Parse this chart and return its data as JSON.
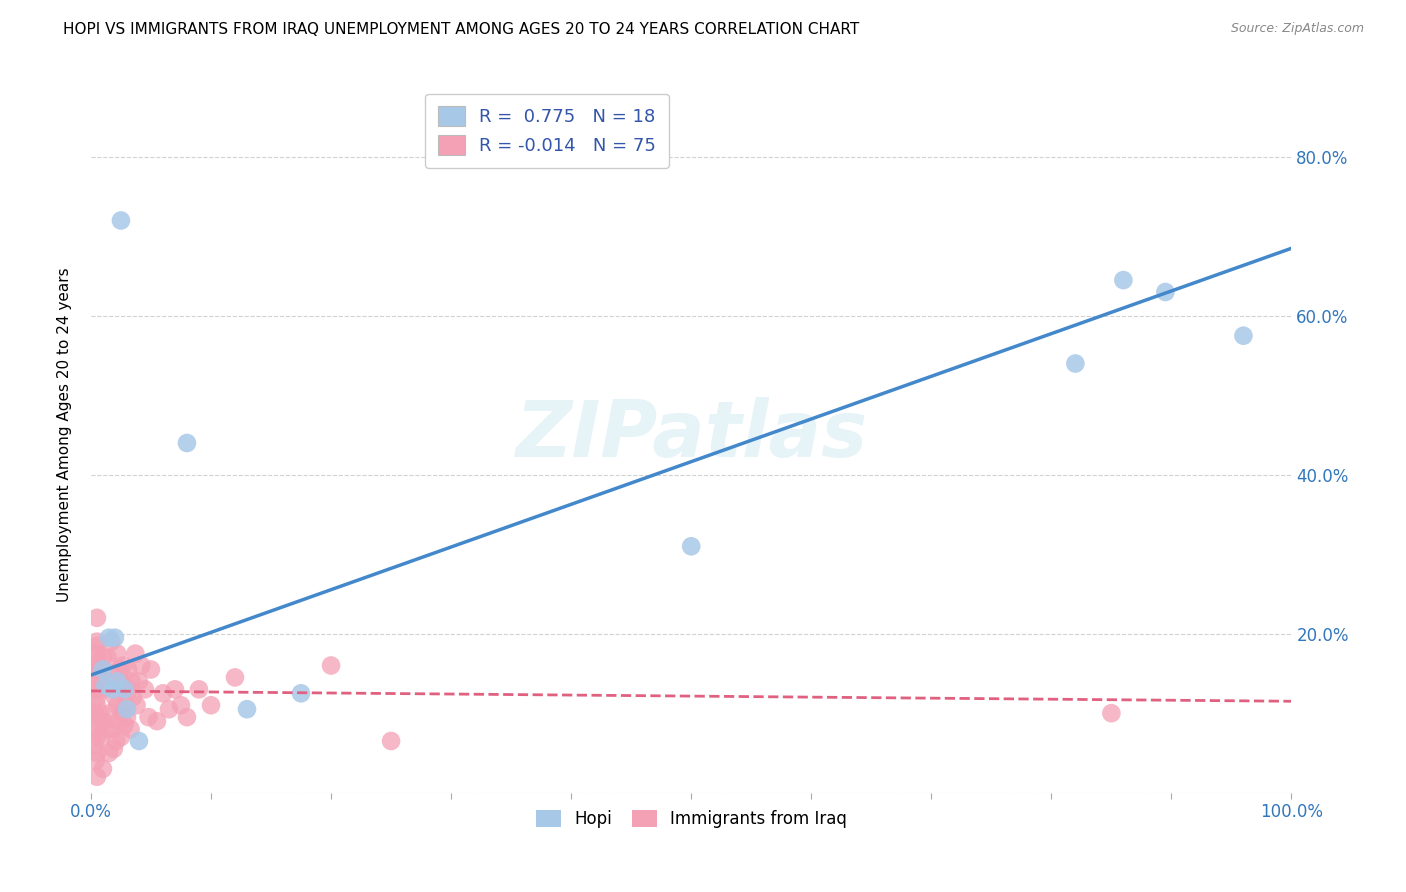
{
  "title": "HOPI VS IMMIGRANTS FROM IRAQ UNEMPLOYMENT AMONG AGES 20 TO 24 YEARS CORRELATION CHART",
  "source": "Source: ZipAtlas.com",
  "ylabel": "Unemployment Among Ages 20 to 24 years",
  "xlim": [
    0.0,
    1.0
  ],
  "ylim": [
    0.0,
    0.9
  ],
  "x_ticks": [
    0.0,
    0.1,
    0.2,
    0.3,
    0.4,
    0.5,
    0.6,
    0.7,
    0.8,
    0.9,
    1.0
  ],
  "x_tick_labels": [
    "0.0%",
    "",
    "",
    "",
    "",
    "",
    "",
    "",
    "",
    "",
    "100.0%"
  ],
  "y_ticks": [
    0.0,
    0.2,
    0.4,
    0.6,
    0.8
  ],
  "y_tick_labels_right": [
    "",
    "20.0%",
    "40.0%",
    "60.0%",
    "80.0%"
  ],
  "hopi_color": "#a8c8e8",
  "iraq_color": "#f4a0b5",
  "hopi_line_color": "#4488cc",
  "iraq_line_color": "#e06080",
  "legend_R_hopi": "0.775",
  "legend_N_hopi": "18",
  "legend_R_iraq": "-0.014",
  "legend_N_iraq": "75",
  "watermark": "ZIPatlas",
  "hopi_scatter_x": [
    0.015,
    0.02,
    0.025,
    0.01,
    0.012,
    0.022,
    0.018,
    0.028,
    0.03,
    0.04,
    0.08,
    0.13,
    0.175,
    0.5,
    0.82,
    0.86,
    0.895,
    0.96
  ],
  "hopi_scatter_y": [
    0.195,
    0.195,
    0.72,
    0.155,
    0.135,
    0.14,
    0.13,
    0.13,
    0.105,
    0.065,
    0.44,
    0.105,
    0.125,
    0.31,
    0.54,
    0.645,
    0.63,
    0.575
  ],
  "iraq_scatter_x": [
    0.003,
    0.003,
    0.004,
    0.004,
    0.005,
    0.005,
    0.005,
    0.005,
    0.005,
    0.005,
    0.005,
    0.005,
    0.005,
    0.005,
    0.005,
    0.005,
    0.005,
    0.005,
    0.005,
    0.005,
    0.007,
    0.008,
    0.009,
    0.01,
    0.01,
    0.01,
    0.01,
    0.012,
    0.013,
    0.014,
    0.015,
    0.015,
    0.016,
    0.017,
    0.018,
    0.018,
    0.019,
    0.02,
    0.021,
    0.022,
    0.022,
    0.023,
    0.024,
    0.025,
    0.025,
    0.026,
    0.027,
    0.028,
    0.028,
    0.029,
    0.03,
    0.031,
    0.032,
    0.033,
    0.034,
    0.035,
    0.037,
    0.038,
    0.04,
    0.042,
    0.045,
    0.048,
    0.05,
    0.055,
    0.06,
    0.065,
    0.07,
    0.075,
    0.08,
    0.09,
    0.1,
    0.12,
    0.2,
    0.25,
    0.85
  ],
  "iraq_scatter_y": [
    0.06,
    0.1,
    0.04,
    0.13,
    0.02,
    0.05,
    0.07,
    0.09,
    0.11,
    0.13,
    0.145,
    0.155,
    0.165,
    0.175,
    0.185,
    0.08,
    0.12,
    0.16,
    0.19,
    0.22,
    0.14,
    0.1,
    0.07,
    0.03,
    0.09,
    0.13,
    0.17,
    0.14,
    0.08,
    0.17,
    0.05,
    0.14,
    0.1,
    0.19,
    0.08,
    0.15,
    0.055,
    0.12,
    0.065,
    0.11,
    0.175,
    0.09,
    0.155,
    0.07,
    0.14,
    0.1,
    0.16,
    0.085,
    0.135,
    0.11,
    0.095,
    0.155,
    0.13,
    0.08,
    0.14,
    0.12,
    0.175,
    0.11,
    0.14,
    0.16,
    0.13,
    0.095,
    0.155,
    0.09,
    0.125,
    0.105,
    0.13,
    0.11,
    0.095,
    0.13,
    0.11,
    0.145,
    0.16,
    0.065,
    0.1
  ],
  "hopi_line_y_start": 0.148,
  "hopi_line_y_end": 0.685,
  "iraq_line_y_start": 0.128,
  "iraq_line_y_end": 0.115
}
